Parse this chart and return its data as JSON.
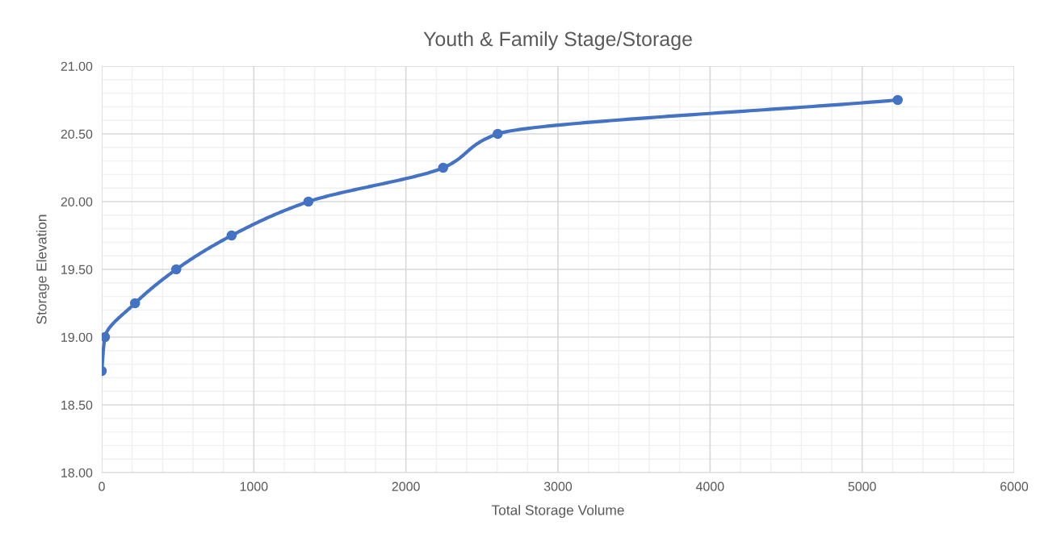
{
  "chart_data": {
    "type": "line",
    "title": "Youth & Family Stage/Storage",
    "xlabel": "Total Storage Volume",
    "ylabel": "Storage Elevation",
    "series": [
      {
        "color": "#4472c4",
        "x": [
          0,
          21,
          219,
          490,
          854,
          1359,
          2245,
          2604,
          5234
        ],
        "values": [
          18.75,
          19.0,
          19.25,
          19.5,
          19.75,
          20.0,
          20.25,
          20.5,
          20.75
        ]
      }
    ],
    "marker": "circle",
    "line_style": "solid",
    "grid": true,
    "xlim": [
      0,
      6000
    ],
    "xticks": [
      0,
      {
        "value": 200,
        "label": null
      },
      {
        "value": 400,
        "label": null
      },
      {
        "value": 600,
        "label": null
      },
      {
        "value": 800,
        "label": null
      },
      1000,
      {
        "value": 1200,
        "label": null
      },
      {
        "value": 1400,
        "label": null
      },
      {
        "value": 1600,
        "label": null
      },
      {
        "value": 1800,
        "label": null
      },
      2000,
      {
        "value": 2200,
        "label": null
      },
      {
        "value": 2400,
        "label": null
      },
      {
        "value": 2600,
        "label": null
      },
      {
        "value": 2800,
        "label": null
      },
      3000,
      {
        "value": 3200,
        "label": null
      },
      {
        "value": 3400,
        "label": null
      },
      {
        "value": 3600,
        "label": null
      },
      {
        "value": 3800,
        "label": null
      },
      4000,
      {
        "value": 4200,
        "label": null
      },
      {
        "value": 4400,
        "label": null
      },
      {
        "value": 4600,
        "label": null
      },
      {
        "value": 4800,
        "label": null
      },
      5000,
      {
        "value": 5200,
        "label": null
      },
      {
        "value": 5400,
        "label": null
      },
      {
        "value": 5600,
        "label": null
      },
      {
        "value": 5800,
        "label": null
      },
      6000
    ],
    "ylim": [
      18,
      21
    ],
    "yticks": [
      {
        "value": 18,
        "label": "18.00"
      },
      {
        "value": 18.1,
        "label": null
      },
      {
        "value": 18.2,
        "label": null
      },
      {
        "value": 18.3,
        "label": null
      },
      {
        "value": 18.4,
        "label": null
      },
      {
        "value": 18.5,
        "label": "18.50"
      },
      {
        "value": 18.6,
        "label": null
      },
      {
        "value": 18.7,
        "label": null
      },
      {
        "value": 18.8,
        "label": null
      },
      {
        "value": 18.9,
        "label": null
      },
      {
        "value": 19,
        "label": "19.00"
      },
      {
        "value": 19.1,
        "label": null
      },
      {
        "value": 19.2,
        "label": null
      },
      {
        "value": 19.3,
        "label": null
      },
      {
        "value": 19.4,
        "label": null
      },
      {
        "value": 19.5,
        "label": "19.50"
      },
      {
        "value": 19.6,
        "label": null
      },
      {
        "value": 19.7,
        "label": null
      },
      {
        "value": 19.8,
        "label": null
      },
      {
        "value": 19.9,
        "label": null
      },
      {
        "value": 20,
        "label": "20.00"
      },
      {
        "value": 20.1,
        "label": null
      },
      {
        "value": 20.2,
        "label": null
      },
      {
        "value": 20.3,
        "label": null
      },
      {
        "value": 20.4,
        "label": null
      },
      {
        "value": 20.5,
        "label": "20.50"
      },
      {
        "value": 20.6,
        "label": null
      },
      {
        "value": 20.7,
        "label": null
      },
      {
        "value": 20.8,
        "label": null
      },
      {
        "value": 20.9,
        "label": null
      },
      {
        "value": 21,
        "label": "21.00"
      }
    ]
  }
}
